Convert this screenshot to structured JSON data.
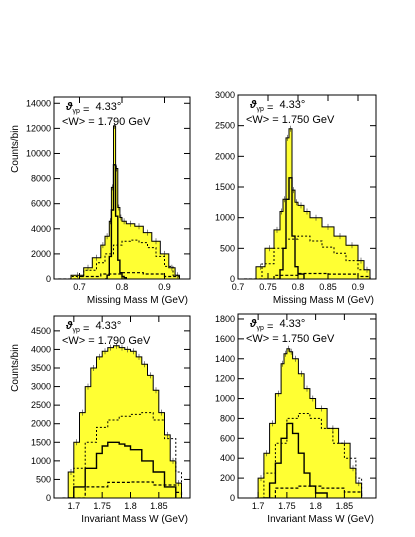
{
  "chart_data": [
    {
      "type": "line",
      "panel": "top-left",
      "annotation_theta": "4.33°",
      "annotation_w": "<W> = 1.790 GeV",
      "xlabel": "Missing Mass M (GeV)",
      "ylabel": "Counts/bin",
      "xlim": [
        0.64,
        0.96
      ],
      "ylim": [
        0,
        14500
      ],
      "xticks": [
        0.7,
        0.8,
        0.9
      ],
      "xtick_labels": [
        "0.7",
        "0.8",
        "0.9"
      ],
      "yticks": [
        0,
        2000,
        4000,
        6000,
        8000,
        10000,
        12000,
        14000
      ],
      "ytick_labels": [
        "0",
        "2000",
        "4000",
        "6000",
        "8000",
        "10000",
        "12000",
        "14000"
      ],
      "series": [
        {
          "x": [
            0.65,
            0.68,
            0.71,
            0.73,
            0.75,
            0.76,
            0.77,
            0.775,
            0.78,
            0.785,
            0.79,
            0.795,
            0.8,
            0.81,
            0.83,
            0.85,
            0.87,
            0.89,
            0.91,
            0.925,
            0.935
          ],
          "values": [
            0,
            300,
            900,
            1700,
            2700,
            3400,
            4600,
            7300,
            12200,
            8800,
            5700,
            4900,
            4600,
            4400,
            4200,
            3700,
            3000,
            2000,
            900,
            300,
            0
          ]
        },
        {
          "x": [
            0.65,
            0.68,
            0.71,
            0.74,
            0.76,
            0.78,
            0.8,
            0.82,
            0.84,
            0.86,
            0.88,
            0.9,
            0.92,
            0.935
          ],
          "values": [
            0,
            200,
            700,
            1300,
            2000,
            2700,
            3000,
            3100,
            2900,
            2500,
            1800,
            1000,
            300,
            0
          ]
        },
        {
          "x": [
            0.76,
            0.765,
            0.77,
            0.775,
            0.78,
            0.785,
            0.79,
            0.795,
            0.8,
            0.805,
            0.81
          ],
          "values": [
            0,
            300,
            1800,
            5500,
            9100,
            5000,
            1500,
            500,
            200,
            100,
            0
          ]
        },
        {
          "x": [
            0.65,
            0.7,
            0.75,
            0.8,
            0.85,
            0.9,
            0.935
          ],
          "values": [
            0,
            200,
            400,
            500,
            400,
            200,
            0
          ]
        }
      ]
    },
    {
      "type": "line",
      "panel": "top-right",
      "annotation_theta": "4.33°",
      "annotation_w": "<W> = 1.750 GeV",
      "xlabel": "Missing Mass M (GeV)",
      "ylabel": "",
      "xlim": [
        0.7,
        0.93
      ],
      "ylim": [
        0,
        3000
      ],
      "xticks": [
        0.7,
        0.75,
        0.8,
        0.85,
        0.9
      ],
      "xtick_labels": [
        "0.7",
        "0.75",
        "0.8",
        "0.85",
        "0.9"
      ],
      "yticks": [
        0,
        500,
        1000,
        1500,
        2000,
        2500,
        3000
      ],
      "ytick_labels": [
        "0",
        "500",
        "1000",
        "1500",
        "2000",
        "2500",
        "3000"
      ],
      "series": [
        {
          "x": [
            0.71,
            0.73,
            0.745,
            0.76,
            0.77,
            0.775,
            0.78,
            0.785,
            0.79,
            0.795,
            0.8,
            0.81,
            0.82,
            0.84,
            0.86,
            0.88,
            0.9,
            0.91,
            0.92
          ],
          "values": [
            0,
            200,
            500,
            800,
            1100,
            1300,
            2300,
            2450,
            1450,
            1250,
            1200,
            1100,
            1000,
            850,
            700,
            550,
            300,
            150,
            0
          ]
        },
        {
          "x": [
            0.71,
            0.74,
            0.76,
            0.78,
            0.8,
            0.82,
            0.84,
            0.86,
            0.88,
            0.9,
            0.92
          ],
          "values": [
            0,
            250,
            500,
            650,
            700,
            620,
            520,
            420,
            300,
            150,
            0
          ]
        },
        {
          "x": [
            0.765,
            0.77,
            0.775,
            0.78,
            0.785,
            0.79,
            0.795,
            0.8,
            0.81
          ],
          "values": [
            0,
            150,
            500,
            1300,
            1650,
            700,
            200,
            80,
            0
          ]
        },
        {
          "x": [
            0.71,
            0.76,
            0.8,
            0.85,
            0.9,
            0.92
          ],
          "values": [
            0,
            60,
            90,
            80,
            40,
            0
          ]
        }
      ]
    },
    {
      "type": "line",
      "panel": "bottom-left",
      "annotation_theta": "4.33°",
      "annotation_w": "<W> = 1.790 GeV",
      "xlabel": "Invariant Mass W (GeV)",
      "ylabel": "Counts/bin",
      "xlim": [
        1.665,
        1.905
      ],
      "ylim": [
        0,
        4900
      ],
      "xticks": [
        1.7,
        1.75,
        1.8,
        1.85
      ],
      "xtick_labels": [
        "1.7",
        "1.75",
        "1.8",
        "1.85"
      ],
      "yticks": [
        0,
        500,
        1000,
        1500,
        2000,
        2500,
        3000,
        3500,
        4000,
        4500
      ],
      "ytick_labels": [
        "0",
        "500",
        "1000",
        "1500",
        "2000",
        "2500",
        "3000",
        "3500",
        "4000",
        "4500"
      ],
      "series": [
        {
          "x": [
            1.68,
            1.69,
            1.7,
            1.71,
            1.72,
            1.73,
            1.74,
            1.75,
            1.76,
            1.77,
            1.78,
            1.79,
            1.8,
            1.81,
            1.82,
            1.83,
            1.84,
            1.85,
            1.86,
            1.87,
            1.88,
            1.89
          ],
          "values": [
            0,
            700,
            1500,
            2300,
            3000,
            3500,
            3800,
            3950,
            4050,
            4100,
            4050,
            4000,
            3950,
            3800,
            3600,
            3300,
            2900,
            2300,
            1700,
            1000,
            400,
            0
          ]
        },
        {
          "x": [
            1.68,
            1.7,
            1.72,
            1.74,
            1.76,
            1.78,
            1.8,
            1.82,
            1.84,
            1.86,
            1.88,
            1.89
          ],
          "values": [
            0,
            800,
            1500,
            1900,
            2100,
            2200,
            2250,
            2300,
            2100,
            1600,
            700,
            0
          ]
        },
        {
          "x": [
            1.69,
            1.7,
            1.72,
            1.74,
            1.75,
            1.76,
            1.77,
            1.78,
            1.79,
            1.8,
            1.82,
            1.84,
            1.86,
            1.88
          ],
          "values": [
            0,
            300,
            800,
            1200,
            1400,
            1500,
            1500,
            1450,
            1400,
            1300,
            1000,
            700,
            300,
            0
          ]
        },
        {
          "x": [
            1.68,
            1.72,
            1.76,
            1.8,
            1.84,
            1.88,
            1.89
          ],
          "values": [
            0,
            300,
            420,
            430,
            350,
            150,
            0
          ]
        }
      ]
    },
    {
      "type": "line",
      "panel": "bottom-right",
      "annotation_theta": "4.33°",
      "annotation_w": "<W> = 1.750 GeV",
      "xlabel": "Invariant Mass W (GeV)",
      "ylabel": "",
      "xlim": [
        1.665,
        1.905
      ],
      "ylim": [
        0,
        1850
      ],
      "xticks": [
        1.7,
        1.75,
        1.8,
        1.85
      ],
      "xtick_labels": [
        "1.7",
        "1.75",
        "1.8",
        "1.85"
      ],
      "yticks": [
        0,
        200,
        400,
        600,
        800,
        1000,
        1200,
        1400,
        1600,
        1800
      ],
      "ytick_labels": [
        "0",
        "200",
        "400",
        "600",
        "800",
        "1000",
        "1200",
        "1400",
        "1600",
        "1800"
      ],
      "series": [
        {
          "x": [
            1.695,
            1.7,
            1.71,
            1.72,
            1.73,
            1.74,
            1.745,
            1.75,
            1.755,
            1.76,
            1.77,
            1.78,
            1.79,
            1.8,
            1.82,
            1.84,
            1.86,
            1.87,
            1.88
          ],
          "values": [
            0,
            200,
            450,
            750,
            1050,
            1350,
            1450,
            1500,
            1470,
            1400,
            1250,
            1100,
            1000,
            900,
            700,
            550,
            300,
            150,
            0
          ]
        },
        {
          "x": [
            1.695,
            1.71,
            1.73,
            1.75,
            1.77,
            1.79,
            1.81,
            1.83,
            1.85,
            1.87,
            1.88
          ],
          "values": [
            0,
            250,
            550,
            800,
            850,
            800,
            700,
            550,
            400,
            200,
            0
          ]
        },
        {
          "x": [
            1.71,
            1.72,
            1.73,
            1.74,
            1.75,
            1.76,
            1.77,
            1.78,
            1.79,
            1.8,
            1.82
          ],
          "values": [
            0,
            150,
            350,
            600,
            750,
            650,
            450,
            250,
            120,
            50,
            0
          ]
        },
        {
          "x": [
            1.695,
            1.73,
            1.77,
            1.81,
            1.85,
            1.88
          ],
          "values": [
            0,
            100,
            120,
            100,
            60,
            0
          ]
        }
      ]
    }
  ]
}
